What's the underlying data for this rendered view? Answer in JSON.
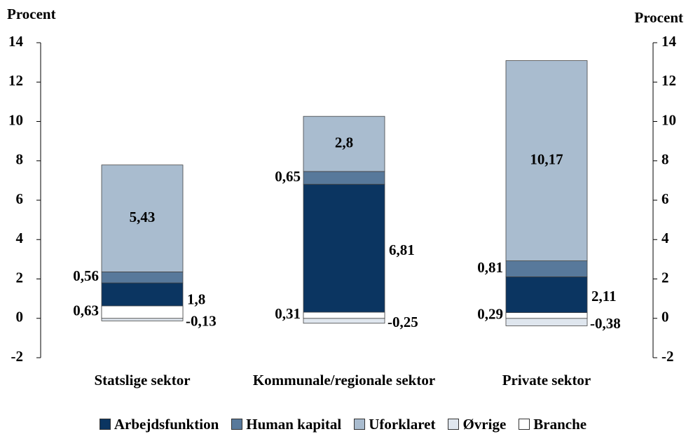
{
  "chart_data": {
    "type": "stacked_bar",
    "y_label": "Procent",
    "y2_label": "Procent",
    "categories": [
      "Statslige sektor",
      "Kommunale/regionale sektor",
      "Private sektor"
    ],
    "series": [
      {
        "name": "Arbejdsfunktion",
        "color": "#0b3561",
        "values": [
          1.8,
          6.81,
          2.11
        ],
        "value_labels": [
          "1,8",
          "6,81",
          "2,11"
        ]
      },
      {
        "name": "Human kapital",
        "color": "#58799b",
        "values": [
          0.56,
          0.65,
          0.81
        ],
        "value_labels": [
          "0,56",
          "0,65",
          "0,81"
        ]
      },
      {
        "name": "Uforklaret",
        "color": "#a9bccf",
        "values": [
          5.43,
          2.8,
          10.17
        ],
        "value_labels": [
          "5,43",
          "2,8",
          "10,17"
        ]
      },
      {
        "name": "Øvrige",
        "color": "#dfe6ee",
        "values": [
          -0.13,
          -0.25,
          -0.38
        ],
        "value_labels": [
          "-0,13",
          "-0,25",
          "-0,38"
        ]
      },
      {
        "name": "Branche",
        "color": "#ffffff",
        "values": [
          0.63,
          0.31,
          0.29
        ],
        "value_labels": [
          "0,63",
          "0,31",
          "0,29"
        ]
      }
    ],
    "ylim": [
      -2,
      14
    ],
    "yticks": [
      -2,
      0,
      2,
      4,
      6,
      8,
      10,
      12,
      14
    ],
    "y2lim": [
      -2,
      14
    ],
    "y2ticks": [
      -2,
      0,
      2,
      4,
      6,
      8,
      10,
      12,
      14
    ]
  }
}
